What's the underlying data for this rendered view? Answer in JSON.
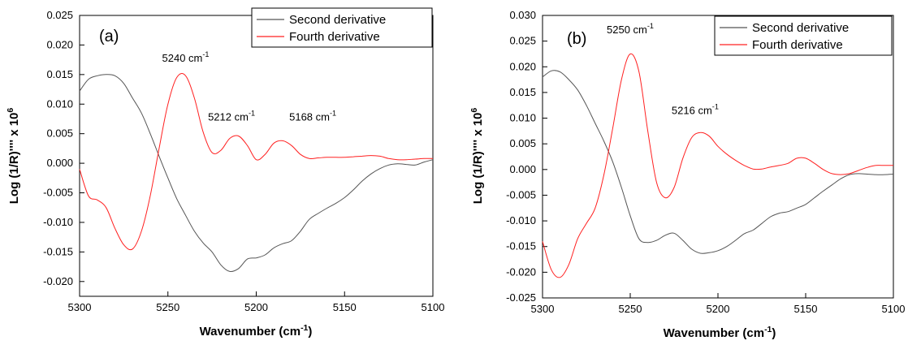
{
  "chart_data": [
    {
      "type": "line",
      "panel_label": "(a)",
      "xlabel": "Wavenumber (cm",
      "xlabel_sup": "-1",
      "xlabel_end": ")",
      "ylabel": "Log (1/R)'''' x 10",
      "ylabel_sup": "6",
      "xlim": [
        5300,
        5100
      ],
      "ylim": [
        -0.0225,
        0.025
      ],
      "xticks": [
        5300,
        5250,
        5200,
        5150,
        5100
      ],
      "xtick_labels": [
        "5300",
        "5250",
        "5200",
        "5150",
        "5100"
      ],
      "yticks": [
        0.025,
        0.02,
        0.015,
        0.01,
        0.005,
        0.0,
        -0.005,
        -0.01,
        -0.015,
        -0.02
      ],
      "ytick_labels": [
        "0.025",
        "0.020",
        "0.015",
        "0.010",
        "0.005",
        "0.000",
        "-0.005",
        "-0.010",
        "-0.015",
        "-0.020"
      ],
      "legend_position": "top-right",
      "series": [
        {
          "name": "Second derivative",
          "color": "#555555",
          "x": [
            5300,
            5295,
            5290,
            5285,
            5280,
            5275,
            5270,
            5265,
            5260,
            5255,
            5250,
            5245,
            5240,
            5235,
            5230,
            5225,
            5220,
            5215,
            5210,
            5205,
            5200,
            5195,
            5190,
            5185,
            5180,
            5175,
            5170,
            5165,
            5160,
            5155,
            5150,
            5145,
            5140,
            5135,
            5130,
            5125,
            5120,
            5115,
            5110,
            5105,
            5100
          ],
          "y": [
            0.0122,
            0.0142,
            0.0148,
            0.015,
            0.0148,
            0.0135,
            0.011,
            0.0085,
            0.005,
            0.0012,
            -0.0025,
            -0.006,
            -0.0088,
            -0.0115,
            -0.0135,
            -0.015,
            -0.0172,
            -0.0183,
            -0.0178,
            -0.0162,
            -0.016,
            -0.0155,
            -0.0143,
            -0.0136,
            -0.0131,
            -0.0115,
            -0.0095,
            -0.0085,
            -0.0076,
            -0.0068,
            -0.0058,
            -0.0045,
            -0.003,
            -0.0018,
            -0.0009,
            -0.0003,
            -0.0001,
            -0.0002,
            -0.0003,
            0.0002,
            0.0006
          ]
        },
        {
          "name": "Fourth derivative",
          "color": "#ff2020",
          "x": [
            5300,
            5295,
            5290,
            5285,
            5280,
            5275,
            5270,
            5265,
            5260,
            5255,
            5250,
            5245,
            5240,
            5235,
            5230,
            5225,
            5220,
            5215,
            5210,
            5205,
            5200,
            5195,
            5190,
            5185,
            5180,
            5175,
            5170,
            5165,
            5160,
            5155,
            5150,
            5145,
            5140,
            5135,
            5130,
            5125,
            5120,
            5115,
            5110,
            5105,
            5100
          ],
          "y": [
            -0.001,
            -0.0055,
            -0.0062,
            -0.0075,
            -0.011,
            -0.0138,
            -0.0145,
            -0.0115,
            -0.0055,
            0.0025,
            0.01,
            0.0145,
            0.0148,
            0.011,
            0.0052,
            0.0018,
            0.0022,
            0.0042,
            0.0046,
            0.003,
            0.0006,
            0.0015,
            0.0034,
            0.0038,
            0.003,
            0.0015,
            0.0008,
            0.0009,
            0.001,
            0.001,
            0.001,
            0.0011,
            0.0012,
            0.0013,
            0.0012,
            0.0008,
            0.0006,
            0.0006,
            0.0007,
            0.0008,
            0.0008
          ]
        }
      ],
      "annotations": [
        {
          "text": "5240 cm",
          "sup": "-1",
          "x": 5240,
          "y": 0.0172
        },
        {
          "text": "5212 cm",
          "sup": "-1",
          "x": 5214,
          "y": 0.0072
        },
        {
          "text": "5168 cm",
          "sup": "-1",
          "x": 5168,
          "y": 0.0072
        }
      ]
    },
    {
      "type": "line",
      "panel_label": "(b)",
      "xlabel": "Wavenumber (cm",
      "xlabel_sup": "-1",
      "xlabel_end": ")",
      "ylabel": "Log (1/R)'''' x 10",
      "ylabel_sup": "6",
      "xlim": [
        5300,
        5100
      ],
      "ylim": [
        -0.025,
        0.03
      ],
      "xticks": [
        5300,
        5250,
        5200,
        5150,
        5100
      ],
      "xtick_labels": [
        "5300",
        "5250",
        "5200",
        "5150",
        "5100"
      ],
      "yticks": [
        0.03,
        0.025,
        0.02,
        0.015,
        0.01,
        0.005,
        0.0,
        -0.005,
        -0.01,
        -0.015,
        -0.02,
        -0.025
      ],
      "ytick_labels": [
        "0.030",
        "0.025",
        "0.020",
        "0.015",
        "0.010",
        "0.005",
        "0.000",
        "-0.005",
        "-0.010",
        "-0.015",
        "-0.020",
        "-0.025"
      ],
      "legend_position": "top-right",
      "series": [
        {
          "name": "Second derivative",
          "color": "#555555",
          "x": [
            5300,
            5295,
            5290,
            5285,
            5280,
            5275,
            5270,
            5265,
            5260,
            5255,
            5250,
            5245,
            5240,
            5235,
            5230,
            5225,
            5220,
            5215,
            5210,
            5205,
            5200,
            5195,
            5190,
            5185,
            5180,
            5175,
            5170,
            5165,
            5160,
            5155,
            5150,
            5145,
            5140,
            5135,
            5130,
            5125,
            5120,
            5115,
            5110,
            5105,
            5100
          ],
          "y": [
            0.018,
            0.0192,
            0.019,
            0.0175,
            0.0155,
            0.0125,
            0.009,
            0.0055,
            0.0015,
            -0.0035,
            -0.009,
            -0.0135,
            -0.0142,
            -0.0138,
            -0.0128,
            -0.0124,
            -0.0138,
            -0.0155,
            -0.0163,
            -0.0162,
            -0.0158,
            -0.015,
            -0.0138,
            -0.0125,
            -0.0118,
            -0.0105,
            -0.0092,
            -0.0085,
            -0.0082,
            -0.0075,
            -0.0068,
            -0.0055,
            -0.0042,
            -0.003,
            -0.0018,
            -0.001,
            -0.0008,
            -0.0009,
            -0.001,
            -0.001,
            -0.0009
          ]
        },
        {
          "name": "Fourth derivative",
          "color": "#ff2020",
          "x": [
            5300,
            5295,
            5290,
            5285,
            5280,
            5275,
            5270,
            5265,
            5260,
            5255,
            5250,
            5245,
            5240,
            5235,
            5230,
            5225,
            5220,
            5215,
            5210,
            5205,
            5200,
            5195,
            5190,
            5185,
            5180,
            5175,
            5170,
            5165,
            5160,
            5155,
            5150,
            5145,
            5140,
            5135,
            5130,
            5125,
            5120,
            5115,
            5110,
            5105,
            5100
          ],
          "y": [
            -0.014,
            -0.0195,
            -0.021,
            -0.0185,
            -0.0135,
            -0.0105,
            -0.0075,
            -0.001,
            0.008,
            0.0175,
            0.0225,
            0.019,
            0.0075,
            -0.0025,
            -0.0055,
            -0.0035,
            0.0022,
            0.0062,
            0.0072,
            0.0065,
            0.0045,
            0.003,
            0.0018,
            0.0008,
            0.0001,
            0.0001,
            0.0005,
            0.0008,
            0.0012,
            0.0022,
            0.0022,
            0.0012,
            0.0,
            -0.0008,
            -0.001,
            -0.0008,
            -0.0002,
            0.0004,
            0.0008,
            0.0008,
            0.0008
          ]
        }
      ],
      "annotations": [
        {
          "text": "5250 cm",
          "sup": "-1",
          "x": 5250,
          "y": 0.0265
        },
        {
          "text": "5216 cm",
          "sup": "-1",
          "x": 5213,
          "y": 0.0108
        }
      ]
    }
  ]
}
